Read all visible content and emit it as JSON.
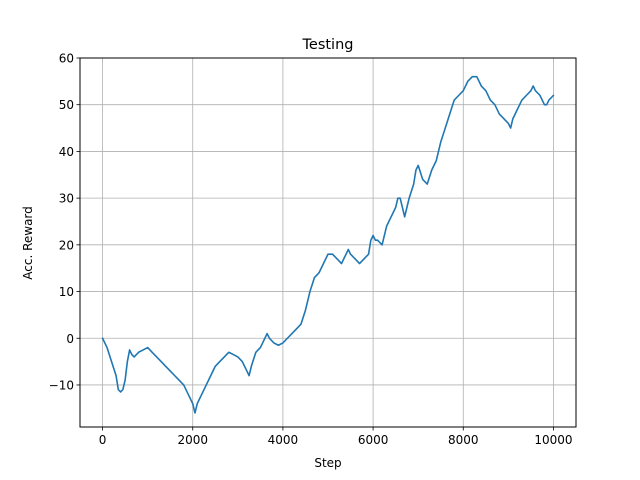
{
  "chart_data": {
    "type": "line",
    "title": "Testing",
    "xlabel": "Step",
    "ylabel": "Acc. Reward",
    "xlim": [
      -500,
      10500
    ],
    "ylim": [
      -19,
      60
    ],
    "xticks": [
      0,
      2000,
      4000,
      6000,
      8000,
      10000
    ],
    "yticks": [
      -10,
      0,
      10,
      20,
      30,
      40,
      50,
      60
    ],
    "grid": true,
    "series": [
      {
        "color": "#1f77b4",
        "points": [
          [
            0,
            0
          ],
          [
            100,
            -2
          ],
          [
            200,
            -5
          ],
          [
            300,
            -8
          ],
          [
            350,
            -11
          ],
          [
            400,
            -11.5
          ],
          [
            450,
            -11
          ],
          [
            500,
            -9
          ],
          [
            550,
            -5
          ],
          [
            600,
            -2.5
          ],
          [
            650,
            -3.5
          ],
          [
            700,
            -4
          ],
          [
            800,
            -3
          ],
          [
            900,
            -2.5
          ],
          [
            1000,
            -2
          ],
          [
            1100,
            -3
          ],
          [
            1200,
            -4
          ],
          [
            1300,
            -5
          ],
          [
            1400,
            -6
          ],
          [
            1500,
            -7
          ],
          [
            1600,
            -8
          ],
          [
            1700,
            -9
          ],
          [
            1800,
            -10
          ],
          [
            1900,
            -12
          ],
          [
            2000,
            -14
          ],
          [
            2050,
            -16
          ],
          [
            2100,
            -14
          ],
          [
            2200,
            -12
          ],
          [
            2300,
            -10
          ],
          [
            2400,
            -8
          ],
          [
            2500,
            -6
          ],
          [
            2600,
            -5
          ],
          [
            2700,
            -4
          ],
          [
            2800,
            -3
          ],
          [
            2900,
            -3.5
          ],
          [
            3000,
            -4
          ],
          [
            3100,
            -5
          ],
          [
            3200,
            -7
          ],
          [
            3250,
            -8
          ],
          [
            3300,
            -6
          ],
          [
            3400,
            -3
          ],
          [
            3500,
            -2
          ],
          [
            3550,
            -1
          ],
          [
            3600,
            0
          ],
          [
            3650,
            1
          ],
          [
            3700,
            0
          ],
          [
            3800,
            -1
          ],
          [
            3900,
            -1.5
          ],
          [
            4000,
            -1
          ],
          [
            4100,
            0
          ],
          [
            4200,
            1
          ],
          [
            4300,
            2
          ],
          [
            4400,
            3
          ],
          [
            4500,
            6
          ],
          [
            4600,
            10
          ],
          [
            4700,
            13
          ],
          [
            4800,
            14
          ],
          [
            4900,
            16
          ],
          [
            5000,
            18
          ],
          [
            5100,
            18
          ],
          [
            5200,
            17
          ],
          [
            5300,
            16
          ],
          [
            5400,
            18
          ],
          [
            5450,
            19
          ],
          [
            5500,
            18
          ],
          [
            5600,
            17
          ],
          [
            5700,
            16
          ],
          [
            5800,
            17
          ],
          [
            5900,
            18
          ],
          [
            5950,
            21
          ],
          [
            6000,
            22
          ],
          [
            6050,
            21
          ],
          [
            6100,
            21
          ],
          [
            6200,
            20
          ],
          [
            6300,
            24
          ],
          [
            6400,
            26
          ],
          [
            6500,
            28
          ],
          [
            6550,
            30
          ],
          [
            6600,
            30
          ],
          [
            6650,
            28
          ],
          [
            6700,
            26
          ],
          [
            6750,
            28
          ],
          [
            6800,
            30
          ],
          [
            6900,
            33
          ],
          [
            6950,
            36
          ],
          [
            7000,
            37
          ],
          [
            7100,
            34
          ],
          [
            7200,
            33
          ],
          [
            7300,
            36
          ],
          [
            7400,
            38
          ],
          [
            7500,
            42
          ],
          [
            7600,
            45
          ],
          [
            7700,
            48
          ],
          [
            7800,
            51
          ],
          [
            7900,
            52
          ],
          [
            8000,
            53
          ],
          [
            8100,
            55
          ],
          [
            8200,
            56
          ],
          [
            8300,
            56
          ],
          [
            8400,
            54
          ],
          [
            8500,
            53
          ],
          [
            8600,
            51
          ],
          [
            8700,
            50
          ],
          [
            8800,
            48
          ],
          [
            8900,
            47
          ],
          [
            9000,
            46
          ],
          [
            9050,
            45
          ],
          [
            9100,
            47
          ],
          [
            9200,
            49
          ],
          [
            9300,
            51
          ],
          [
            9400,
            52
          ],
          [
            9500,
            53
          ],
          [
            9550,
            54
          ],
          [
            9600,
            53
          ],
          [
            9700,
            52
          ],
          [
            9800,
            50
          ],
          [
            9850,
            50
          ],
          [
            9900,
            51
          ],
          [
            10000,
            52
          ]
        ]
      }
    ]
  }
}
